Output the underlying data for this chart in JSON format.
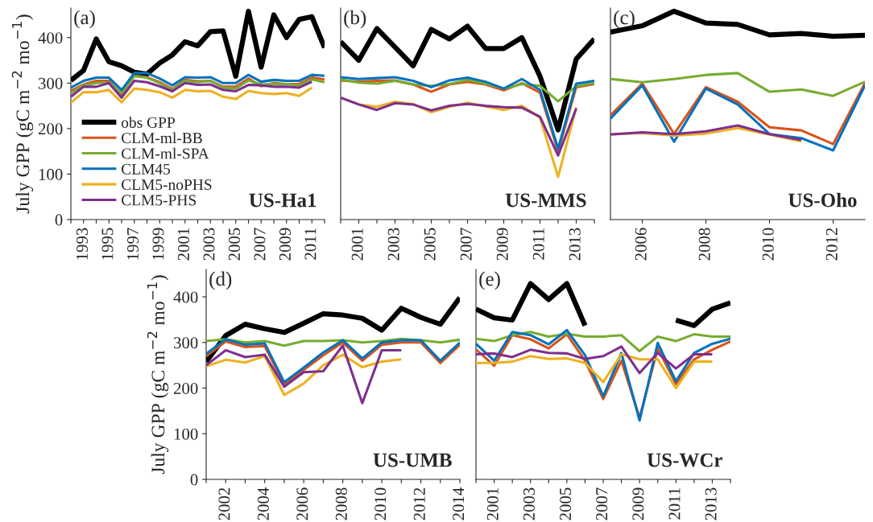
{
  "chart_data": [
    {
      "type": "line",
      "ylabel": "July GPP (gC m$^{−2}$ mo$^{−1}$)",
      "legend": "bottom left",
      "annotations": [
        "(a)",
        "US-Ha1"
      ],
      "x": [
        1992,
        1993,
        1994,
        1995,
        1996,
        1997,
        1998,
        1999,
        2000,
        2001,
        2002,
        2003,
        2004,
        2005,
        2006,
        2007,
        2008,
        2009,
        2010,
        2011,
        2012
      ],
      "xlim": [
        1992,
        2012
      ],
      "ylim": [
        0,
        465
      ],
      "yticks": [
        0,
        100,
        200,
        300,
        400
      ],
      "xticks": [
        {
          "value": 1992,
          "label": null
        },
        1993,
        {
          "value": 1994,
          "label": null
        },
        1995,
        {
          "value": 1996,
          "label": null
        },
        1997,
        {
          "value": 1998,
          "label": null
        },
        1999,
        {
          "value": 2000,
          "label": null
        },
        2001,
        {
          "value": 2002,
          "label": null
        },
        2003,
        {
          "value": 2004,
          "label": null
        },
        2005,
        {
          "value": 2006,
          "label": null
        },
        2007,
        {
          "value": 2008,
          "label": null
        },
        2009,
        {
          "value": 2010,
          "label": null
        },
        2011,
        {
          "value": 2012,
          "label": null
        }
      ],
      "series": [
        {
          "name": "obs GPP",
          "color": "#000000",
          "values": [
            306,
            328,
            397,
            347,
            338,
            324,
            320,
            344,
            362,
            391,
            382,
            413,
            415,
            315,
            458,
            335,
            450,
            400,
            440,
            446,
            378
          ]
        },
        {
          "name": "CLM-ml-BB",
          "color": "#d95319",
          "values": [
            283,
            297,
            305,
            305,
            275,
            316,
            313,
            302,
            287,
            307,
            304,
            305,
            292,
            292,
            310,
            293,
            300,
            298,
            298,
            312,
            308
          ]
        },
        {
          "name": "CLM-ml-SPA",
          "color": "#77ac30",
          "values": [
            278,
            295,
            300,
            302,
            278,
            315,
            312,
            300,
            285,
            305,
            302,
            305,
            290,
            288,
            306,
            297,
            298,
            298,
            295,
            308,
            302
          ]
        },
        {
          "name": "CLM45",
          "color": "#0072bd",
          "values": [
            290,
            305,
            312,
            312,
            285,
            322,
            322,
            310,
            295,
            313,
            312,
            313,
            300,
            300,
            318,
            303,
            307,
            305,
            305,
            318,
            316
          ]
        },
        {
          "name": "CLM5-noPHS",
          "color": "#edb120",
          "values": [
            257,
            280,
            280,
            285,
            258,
            288,
            285,
            280,
            268,
            285,
            282,
            283,
            270,
            265,
            283,
            278,
            276,
            278,
            272,
            290,
            null
          ]
        },
        {
          "name": "CLM5-PHS",
          "color": "#7e2f8e",
          "values": [
            270,
            292,
            292,
            300,
            268,
            305,
            302,
            293,
            282,
            300,
            296,
            297,
            285,
            282,
            296,
            295,
            292,
            292,
            290,
            303,
            null
          ]
        }
      ]
    },
    {
      "type": "line",
      "tick_labels": "x",
      "annotations": [
        "(b)",
        "US-MMS"
      ],
      "x": [
        2000,
        2001,
        2002,
        2003,
        2004,
        2005,
        2006,
        2007,
        2008,
        2009,
        2010,
        2011,
        2012,
        2013,
        2014
      ],
      "xlim": [
        2000,
        2014
      ],
      "ylim": [
        0,
        465
      ],
      "yticks": [
        0,
        100,
        200,
        300,
        400
      ],
      "xticks": [
        {
          "value": 2000,
          "label": null
        },
        2001,
        {
          "value": 2002,
          "label": null
        },
        2003,
        {
          "value": 2004,
          "label": null
        },
        2005,
        {
          "value": 2006,
          "label": null
        },
        2007,
        {
          "value": 2008,
          "label": null
        },
        2009,
        {
          "value": 2010,
          "label": null
        },
        2011,
        {
          "value": 2012,
          "label": null
        },
        2013,
        {
          "value": 2014,
          "label": null
        }
      ],
      "series": [
        {
          "color": "#000000",
          "values": [
            391,
            350,
            420,
            379,
            338,
            418,
            397,
            425,
            376,
            376,
            400,
            315,
            197,
            353,
            397
          ]
        },
        {
          "color": "#d95319",
          "values": [
            306,
            303,
            305,
            306,
            297,
            281,
            297,
            303,
            297,
            284,
            300,
            279,
            150,
            291,
            298
          ]
        },
        {
          "color": "#77ac30",
          "values": [
            308,
            301,
            299,
            305,
            297,
            294,
            298,
            307,
            299,
            288,
            298,
            294,
            260,
            293,
            300
          ]
        },
        {
          "color": "#0072bd",
          "values": [
            313,
            309,
            311,
            313,
            305,
            291,
            306,
            312,
            303,
            288,
            309,
            285,
            156,
            299,
            305
          ]
        },
        {
          "color": "#edb120",
          "values": [
            268,
            253,
            248,
            259,
            254,
            236,
            248,
            257,
            249,
            241,
            250,
            224,
            94,
            247,
            null
          ]
        },
        {
          "color": "#7e2f8e",
          "values": [
            268,
            253,
            241,
            256,
            253,
            240,
            250,
            254,
            250,
            247,
            246,
            226,
            141,
            244,
            null
          ]
        }
      ]
    },
    {
      "type": "line",
      "tick_labels": "x",
      "annotations": [
        "(c)",
        "US-Oho"
      ],
      "x": [
        2005,
        2006,
        2007,
        2008,
        2009,
        2010,
        2011,
        2012,
        2013
      ],
      "xlim": [
        2005,
        2013
      ],
      "ylim": [
        0,
        465
      ],
      "yticks": [
        0,
        100,
        200,
        300,
        400
      ],
      "xticks": [
        2006,
        2008,
        2010,
        2012
      ],
      "series": [
        {
          "color": "#000000",
          "values": [
            412,
            426,
            458,
            432,
            429,
            406,
            409,
            403,
            405
          ]
        },
        {
          "color": "#d95319",
          "values": [
            229,
            299,
            188,
            291,
            259,
            203,
            196,
            166,
            300
          ]
        },
        {
          "color": "#77ac30",
          "values": [
            309,
            302,
            309,
            318,
            322,
            281,
            286,
            272,
            303
          ]
        },
        {
          "color": "#0072bd",
          "values": [
            222,
            295,
            171,
            288,
            253,
            188,
            179,
            152,
            295
          ]
        },
        {
          "color": "#edb120",
          "values": [
            188,
            190,
            185,
            189,
            201,
            187,
            172,
            null,
            null
          ]
        },
        {
          "color": "#7e2f8e",
          "values": [
            187,
            192,
            188,
            194,
            207,
            188,
            175,
            null,
            null
          ]
        }
      ]
    },
    {
      "type": "line",
      "ylabel": "July GPP (gC m$^{−2}$ mo$^{−1}$)",
      "annotations": [
        "(d)",
        "US-UMB"
      ],
      "x": [
        2001,
        2002,
        2003,
        2004,
        2005,
        2006,
        2007,
        2008,
        2009,
        2010,
        2011,
        2012,
        2013,
        2014
      ],
      "xlim": [
        2001,
        2014
      ],
      "ylim": [
        0,
        460
      ],
      "yticks": [
        0,
        100,
        200,
        300,
        400
      ],
      "xticks": [
        {
          "value": 2001,
          "label": null
        },
        2002,
        {
          "value": 2003,
          "label": null
        },
        2004,
        {
          "value": 2005,
          "label": null
        },
        2006,
        {
          "value": 2007,
          "label": null
        },
        2008,
        {
          "value": 2009,
          "label": null
        },
        2010,
        {
          "value": 2011,
          "label": null
        },
        2012,
        {
          "value": 2013,
          "label": null
        },
        2014
      ],
      "series": [
        {
          "color": "#000000",
          "values": [
            258,
            315,
            340,
            330,
            322,
            342,
            363,
            360,
            353,
            327,
            375,
            355,
            340,
            398
          ]
        },
        {
          "color": "#d95319",
          "values": [
            270,
            302,
            290,
            292,
            208,
            240,
            272,
            300,
            260,
            295,
            300,
            300,
            255,
            295
          ]
        },
        {
          "color": "#77ac30",
          "values": [
            303,
            307,
            300,
            303,
            293,
            303,
            303,
            305,
            300,
            303,
            308,
            305,
            300,
            306
          ]
        },
        {
          "color": "#0072bd",
          "values": [
            275,
            307,
            295,
            298,
            213,
            245,
            278,
            305,
            265,
            300,
            305,
            305,
            260,
            300
          ]
        },
        {
          "color": "#edb120",
          "values": [
            248,
            262,
            256,
            270,
            185,
            210,
            250,
            273,
            246,
            258,
            263,
            null,
            null,
            null
          ]
        },
        {
          "color": "#7e2f8e",
          "values": [
            250,
            283,
            268,
            273,
            203,
            235,
            237,
            293,
            167,
            283,
            283,
            null,
            null,
            null
          ]
        }
      ]
    },
    {
      "type": "line",
      "tick_labels": "x",
      "annotations": [
        "(e)",
        "US-WCr"
      ],
      "x": [
        2000,
        2001,
        2002,
        2003,
        2004,
        2005,
        2006,
        2007,
        2008,
        2009,
        2010,
        2011,
        2012,
        2013,
        2014
      ],
      "xlim": [
        2000,
        2014
      ],
      "ylim": [
        0,
        460
      ],
      "yticks": [
        0,
        100,
        200,
        300,
        400
      ],
      "xticks": [
        {
          "value": 2000,
          "label": null
        },
        2001,
        {
          "value": 2002,
          "label": null
        },
        2003,
        {
          "value": 2004,
          "label": null
        },
        2005,
        {
          "value": 2006,
          "label": null
        },
        2007,
        {
          "value": 2008,
          "label": null
        },
        2009,
        {
          "value": 2010,
          "label": null
        },
        2011,
        {
          "value": 2012,
          "label": null
        },
        2013,
        {
          "value": 2014,
          "label": null
        }
      ],
      "series": [
        {
          "color": "#000000",
          "values": [
            373,
            354,
            349,
            429,
            394,
            429,
            337,
            null,
            null,
            null,
            null,
            349,
            337,
            373,
            387
          ]
        },
        {
          "color": "#d95319",
          "values": [
            285,
            249,
            316,
            307,
            287,
            318,
            260,
            176,
            260,
            135,
            287,
            209,
            263,
            284,
            302
          ]
        },
        {
          "color": "#77ac30",
          "values": [
            308,
            303,
            316,
            323,
            313,
            319,
            313,
            313,
            316,
            281,
            313,
            303,
            318,
            313,
            313
          ]
        },
        {
          "color": "#0072bd",
          "values": [
            297,
            260,
            323,
            316,
            296,
            327,
            272,
            182,
            277,
            129,
            299,
            215,
            277,
            297,
            308
          ]
        },
        {
          "color": "#edb120",
          "values": [
            255,
            255,
            258,
            270,
            264,
            265,
            255,
            213,
            274,
            263,
            263,
            200,
            258,
            258,
            null
          ]
        },
        {
          "color": "#7e2f8e",
          "values": [
            274,
            276,
            268,
            284,
            277,
            276,
            264,
            270,
            291,
            233,
            277,
            243,
            274,
            274,
            null
          ]
        }
      ]
    }
  ]
}
